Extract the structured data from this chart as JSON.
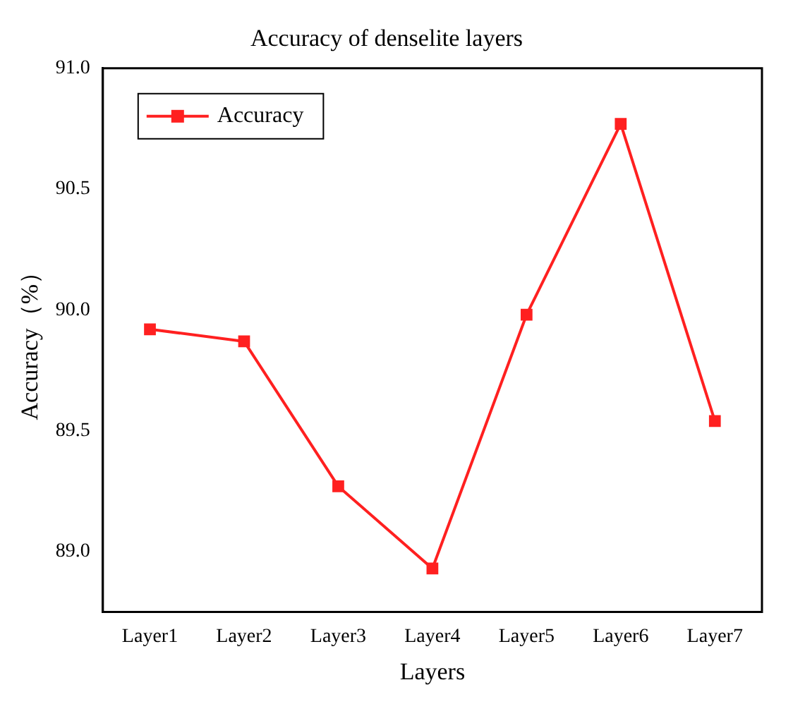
{
  "chart_data": {
    "type": "line",
    "title": "Accuracy of denselite layers",
    "xlabel": "Layers",
    "ylabel": "Accuracy（%）",
    "categories": [
      "Layer1",
      "Layer2",
      "Layer3",
      "Layer4",
      "Layer5",
      "Layer6",
      "Layer7"
    ],
    "series": [
      {
        "name": "Accuracy",
        "color": "#ff2020",
        "values": [
          89.92,
          89.87,
          89.27,
          88.93,
          89.98,
          90.77,
          89.54
        ]
      }
    ],
    "ylim": [
      88.75,
      91.0
    ],
    "yticks": [
      {
        "value": 89,
        "label": "89.0"
      },
      {
        "value": 89.5,
        "label": "89.5"
      },
      {
        "value": 90,
        "label": "90.0"
      },
      {
        "value": 90.5,
        "label": "90.5"
      },
      {
        "value": 91,
        "label": "91.0"
      }
    ],
    "grid": false,
    "legend": "top left",
    "marker": "square",
    "line_style": "solid"
  }
}
